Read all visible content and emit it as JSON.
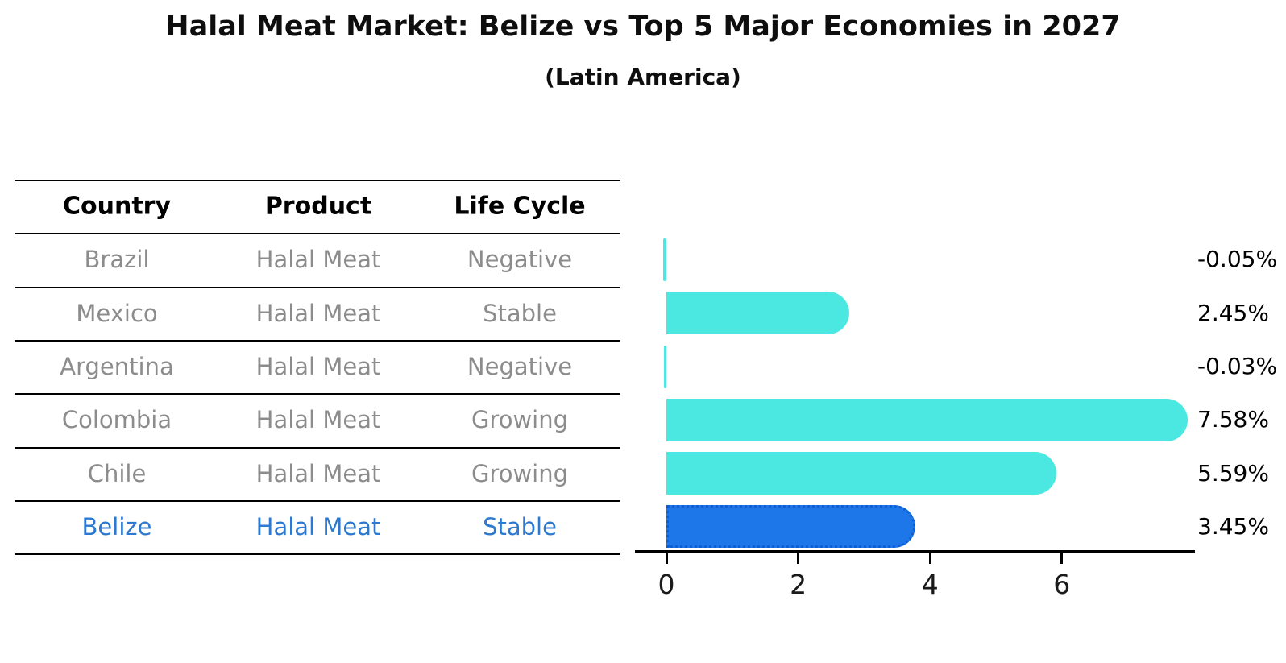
{
  "header": {
    "title": "Halal Meat Market: Belize vs Top 5 Major Economies in 2027",
    "subtitle": "(Latin America)"
  },
  "table": {
    "columns": [
      "Country",
      "Product",
      "Life Cycle"
    ],
    "rows": [
      {
        "country": "Brazil",
        "product": "Halal Meat",
        "life_cycle": "Negative",
        "highlight": false
      },
      {
        "country": "Mexico",
        "product": "Halal Meat",
        "life_cycle": "Stable",
        "highlight": false
      },
      {
        "country": "Argentina",
        "product": "Halal Meat",
        "life_cycle": "Negative",
        "highlight": false
      },
      {
        "country": "Colombia",
        "product": "Halal Meat",
        "life_cycle": "Growing",
        "highlight": false
      },
      {
        "country": "Chile",
        "product": "Halal Meat",
        "life_cycle": "Growing",
        "highlight": false
      },
      {
        "country": "Belize",
        "product": "Halal Meat",
        "life_cycle": "Stable",
        "highlight": true
      }
    ]
  },
  "chart_data": {
    "type": "bar",
    "orientation": "horizontal",
    "title": "Halal Meat Market: Belize vs Top 5 Major Economies in 2027",
    "subtitle": "(Latin America)",
    "categories": [
      "Brazil",
      "Mexico",
      "Argentina",
      "Colombia",
      "Chile",
      "Belize"
    ],
    "values": [
      -0.05,
      2.45,
      -0.03,
      7.58,
      5.59,
      3.45
    ],
    "value_labels": [
      "-0.05%",
      "2.45%",
      "-0.03%",
      "7.58%",
      "5.59%",
      "3.45%"
    ],
    "xticks": [
      0,
      2,
      4,
      6
    ],
    "xlim": [
      -0.1,
      8.0
    ],
    "grid": false,
    "legend": false,
    "highlight_index": 5
  },
  "colors": {
    "bar": "#4AE8E0",
    "highlight_bar": "#1E77E8",
    "highlight_bar_border": "#0E5FD6",
    "table_text": "#8C8C8C",
    "highlight_text": "#2B79D0",
    "header_text": "#000000",
    "axis": "#000000"
  }
}
